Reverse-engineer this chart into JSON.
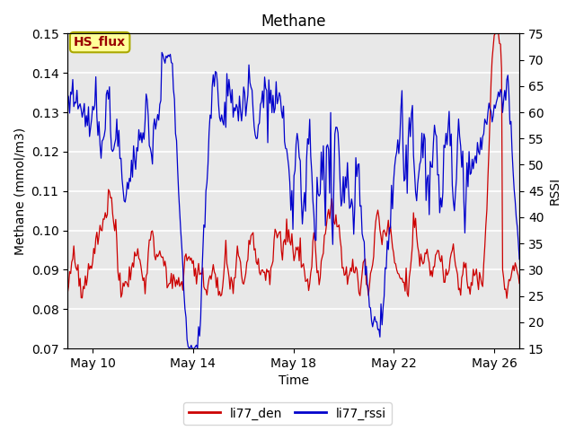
{
  "title": "Methane",
  "ylabel_left": "Methane (mmol/m3)",
  "ylabel_right": "RSSI",
  "xlabel": "Time",
  "ylim_left": [
    0.07,
    0.15
  ],
  "ylim_right": [
    15,
    75
  ],
  "yticks_left": [
    0.07,
    0.08,
    0.09,
    0.1,
    0.11,
    0.12,
    0.13,
    0.14,
    0.15
  ],
  "yticks_right": [
    15,
    20,
    25,
    30,
    35,
    40,
    45,
    50,
    55,
    60,
    65,
    70,
    75
  ],
  "xtick_positions": [
    1,
    5,
    9,
    13,
    17
  ],
  "xtick_labels": [
    "May 10",
    "May 14",
    "May 18",
    "May 22",
    "May 26"
  ],
  "xlim": [
    0,
    18
  ],
  "color_red": "#cc0000",
  "color_blue": "#0000cc",
  "legend_label_red": "li77_den",
  "legend_label_blue": "li77_rssi",
  "box_label": "HS_flux",
  "box_facecolor": "#ffff99",
  "box_edgecolor": "#aaa800",
  "box_textcolor": "#990000",
  "plot_bg": "#e8e8e8",
  "inner_bg": "#d8d8d8",
  "fig_bg": "#ffffff",
  "grid_color": "#ffffff",
  "title_fontsize": 12,
  "axis_fontsize": 10,
  "tick_fontsize": 10,
  "legend_fontsize": 10,
  "linewidth_red": 0.9,
  "linewidth_blue": 0.9
}
